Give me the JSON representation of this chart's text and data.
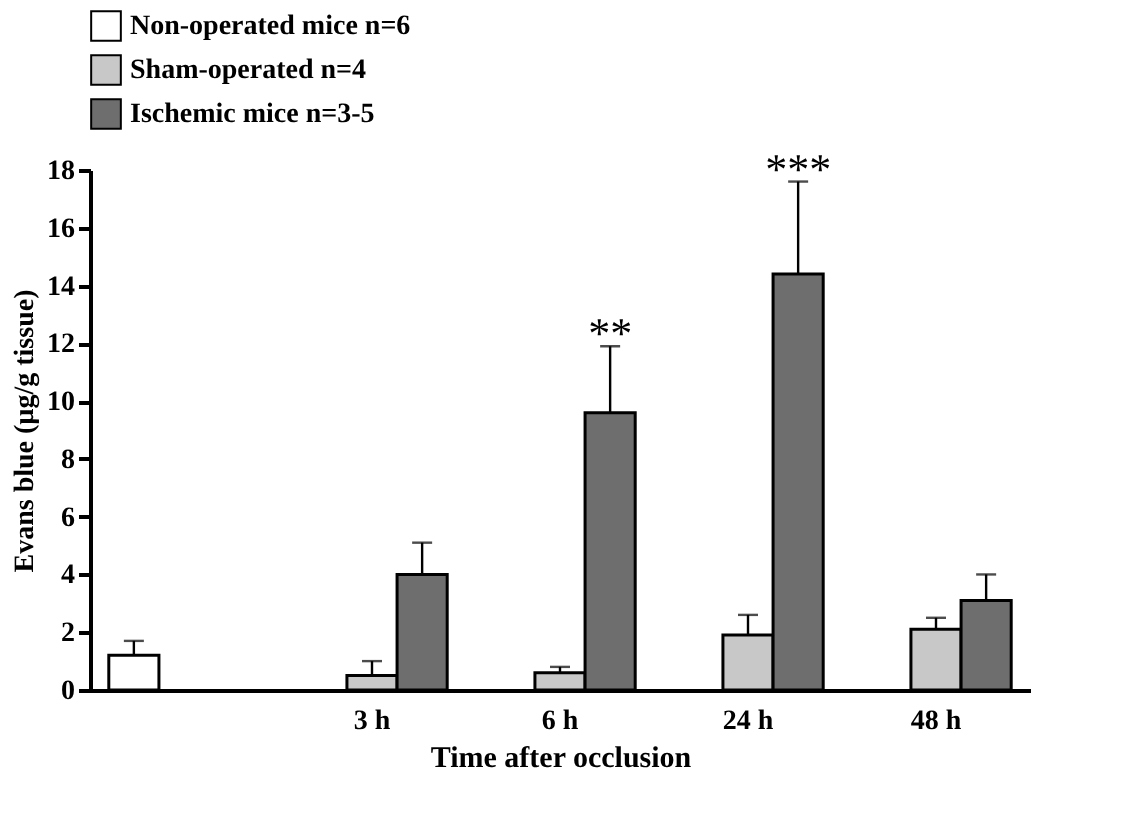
{
  "chart_data": {
    "type": "bar",
    "xlabel": "Time after occlusion",
    "ylabel": "Evans blue (µg/g tissue)",
    "categories": [
      null,
      "3 h",
      "6 h",
      "24 h",
      "48 h"
    ],
    "series": [
      {
        "name": "Non-operated mice n=6",
        "color": "#ffffff",
        "values": [
          1.2,
          null,
          null,
          null,
          null
        ],
        "errors": [
          [
            1.2,
            1.7
          ],
          null,
          null,
          null,
          null
        ]
      },
      {
        "name": "Sham-operated n=4",
        "color": "#c8c8c8",
        "values": [
          null,
          0.5,
          0.6,
          1.9,
          2.1
        ],
        "errors": [
          null,
          [
            0.5,
            1.0
          ],
          [
            0.6,
            0.8
          ],
          [
            1.9,
            2.6
          ],
          [
            2.1,
            2.5
          ]
        ]
      },
      {
        "name": "Ischemic mice n=3-5",
        "color": "#6e6e6e",
        "values": [
          null,
          4.0,
          9.6,
          14.4,
          3.1
        ],
        "errors": [
          null,
          [
            4.0,
            5.1
          ],
          [
            9.6,
            11.9
          ],
          [
            14.4,
            17.6
          ],
          [
            3.1,
            4.0
          ]
        ]
      }
    ],
    "ylim": [
      0,
      18
    ],
    "yticks": [
      0,
      2,
      4,
      6,
      8,
      10,
      12,
      14,
      16,
      18
    ],
    "annotations": [
      "**",
      "***"
    ],
    "legend": "top",
    "grid": false
  }
}
